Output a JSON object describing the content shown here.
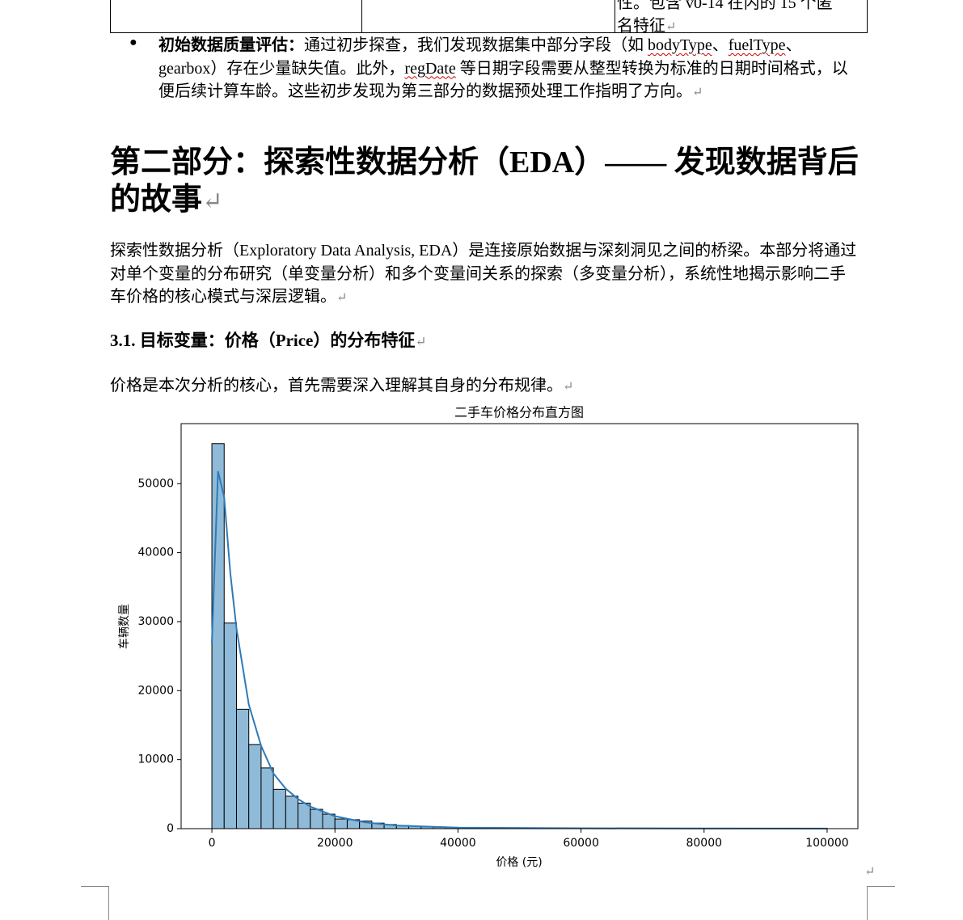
{
  "table_fragment": {
    "cell_lines": [
      "性。包含 v0-14 在内的 15 个匿",
      "名特征"
    ]
  },
  "bullet": {
    "label": "初始数据质量评估：",
    "segments": [
      "通过初步探查，我们发现数据集中部分字段（如 ",
      "bodyType",
      "、",
      "fuelType",
      "、gearbox）存在少量缺失值。此外，",
      "regDate",
      " 等日期字段需要从整型转换为标准的日期时间格式，以便后续计算车龄。这些初步发现为第三部分的数据预处理工作指明了方向。"
    ]
  },
  "section_heading": "第二部分：探索性数据分析（EDA）—— 发现数据背后的故事",
  "intro_paragraph": "探索性数据分析（Exploratory Data Analysis, EDA）是连接原始数据与深刻洞见之间的桥梁。本部分将通过对单个变量的分布研究（单变量分析）和多个变量间关系的探索（多变量分析），系统性地揭示影响二手车价格的核心模式与深层逻辑。",
  "subsection_heading": "3.1. 目标变量：价格（Price）的分布特征",
  "subsection_paragraph": "价格是本次分析的核心，首先需要深入理解其自身的分布规律。",
  "chart_data": {
    "type": "histogram",
    "title": "二手车价格分布直方图",
    "x_label": "价格 (元)",
    "y_label": "车辆数量",
    "bins": [
      0,
      2000,
      4000,
      6000,
      8000,
      10000,
      12000,
      14000,
      16000,
      18000,
      20000,
      22000,
      24000,
      26000,
      28000,
      30000,
      32000,
      34000,
      36000,
      38000,
      40000,
      42000,
      44000,
      46000,
      48000,
      50000,
      52000,
      54000,
      56000,
      58000,
      60000,
      62000,
      64000,
      66000,
      68000,
      70000,
      72000,
      74000,
      76000,
      78000,
      80000,
      82000,
      84000,
      86000,
      88000,
      90000,
      92000,
      94000,
      96000,
      98000,
      100000
    ],
    "values": [
      55800,
      29800,
      17300,
      12200,
      8800,
      5700,
      4700,
      3700,
      2800,
      2100,
      1400,
      1300,
      1100,
      800,
      600,
      450,
      350,
      280,
      220,
      180,
      150,
      130,
      110,
      100,
      90,
      80,
      70,
      60,
      55,
      50,
      45,
      40,
      35,
      30,
      28,
      25,
      22,
      20,
      18,
      16,
      15,
      14,
      13,
      12,
      11,
      10,
      10,
      9,
      9,
      30
    ],
    "color": "#8fbbd9",
    "edge_color": "#000000",
    "kde": {
      "x": [
        0,
        1000,
        2000,
        3000,
        4000,
        6000,
        8000,
        10000,
        12000,
        14000,
        16000,
        20000,
        25000,
        30000,
        40000,
        60000,
        80000,
        100000
      ],
      "values": [
        27000,
        51800,
        48000,
        37000,
        29000,
        18000,
        12000,
        8000,
        5800,
        4300,
        3200,
        1800,
        900,
        450,
        150,
        60,
        30,
        10
      ],
      "color": "#2f7ab8"
    },
    "xlim": [
      -5000,
      105000
    ],
    "ylim": [
      0,
      58700
    ],
    "xticks": [
      0,
      20000,
      40000,
      60000,
      80000,
      100000
    ],
    "yticks": [
      0,
      10000,
      20000,
      30000,
      40000,
      50000
    ]
  }
}
